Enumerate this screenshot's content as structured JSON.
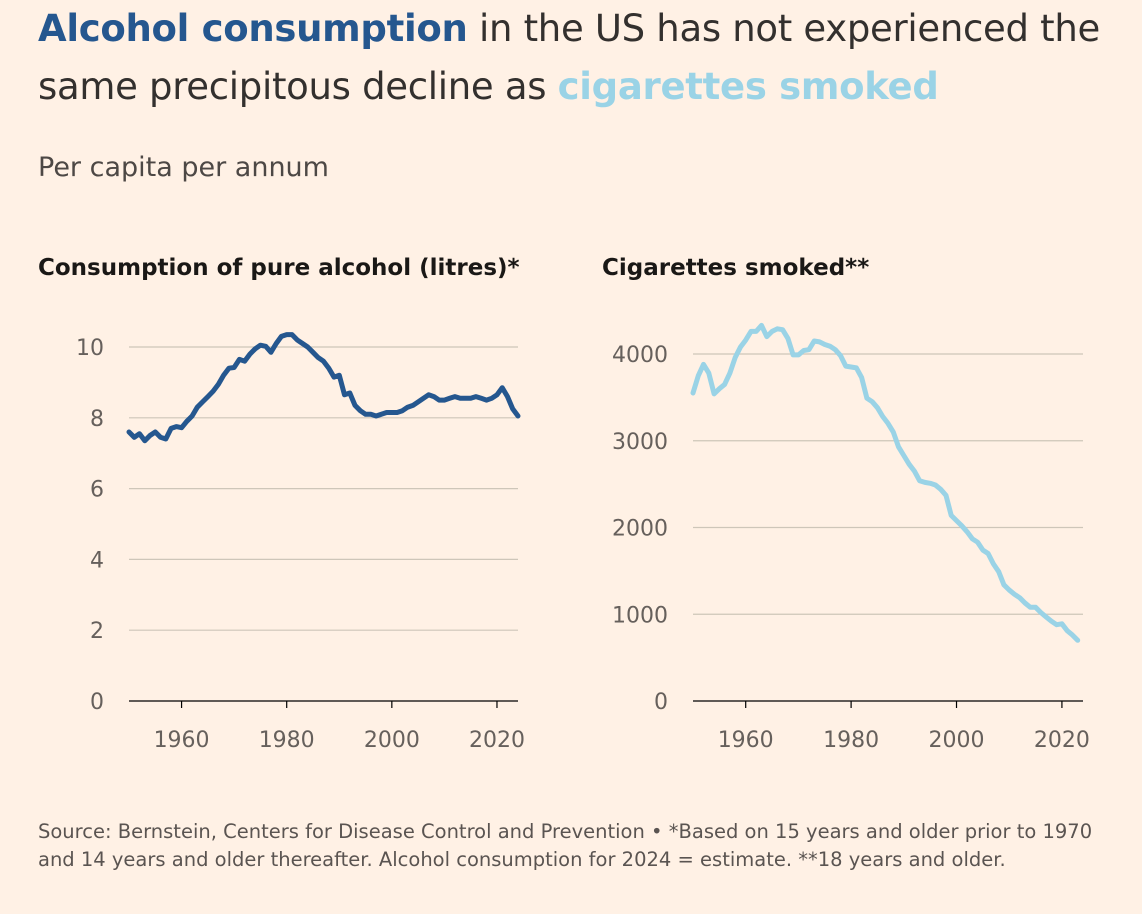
{
  "headline": {
    "alcohol_phrase": "Alcohol consumption",
    "middle": " in the US has not experienced the same precipitous decline as ",
    "cig_phrase": "cigarettes smoked"
  },
  "subtitle": "Per capita per annum",
  "colors": {
    "background": "#fff1e5",
    "alcohol_line": "#25578f",
    "cigarette_line": "#9ad3e6",
    "gridline": "#cec6b9",
    "text": "#33302e"
  },
  "footnote": "Source: Bernstein, Centers for Disease Control and Prevention • *Based on 15 years and older prior to 1970 and 14 years and older thereafter. Alcohol consumption for 2024 = estimate. **18 years and older.",
  "chart_data": [
    {
      "type": "line",
      "title": "Consumption of pure alcohol (litres)*",
      "xlabel": "",
      "ylabel": "",
      "xlim": [
        1950,
        2024
      ],
      "ylim": [
        0,
        10
      ],
      "yticks": [
        0,
        2,
        4,
        6,
        8,
        10
      ],
      "xticks": [
        1960,
        1980,
        2000,
        2020
      ],
      "series": [
        {
          "name": "Alcohol consumption",
          "color": "#25578f",
          "x": [
            1950,
            1951,
            1952,
            1953,
            1954,
            1955,
            1956,
            1957,
            1958,
            1959,
            1960,
            1961,
            1962,
            1963,
            1964,
            1965,
            1966,
            1967,
            1968,
            1969,
            1970,
            1971,
            1972,
            1973,
            1974,
            1975,
            1976,
            1977,
            1978,
            1979,
            1980,
            1981,
            1982,
            1983,
            1984,
            1985,
            1986,
            1987,
            1988,
            1989,
            1990,
            1991,
            1992,
            1993,
            1994,
            1995,
            1996,
            1997,
            1998,
            1999,
            2000,
            2001,
            2002,
            2003,
            2004,
            2005,
            2006,
            2007,
            2008,
            2009,
            2010,
            2011,
            2012,
            2013,
            2014,
            2015,
            2016,
            2017,
            2018,
            2019,
            2020,
            2021,
            2022,
            2023,
            2024
          ],
          "y": [
            7.6,
            7.45,
            7.55,
            7.35,
            7.5,
            7.6,
            7.45,
            7.4,
            7.7,
            7.75,
            7.72,
            7.9,
            8.05,
            8.3,
            8.45,
            8.6,
            8.75,
            8.95,
            9.2,
            9.4,
            9.42,
            9.65,
            9.6,
            9.8,
            9.95,
            10.05,
            10.02,
            9.85,
            10.1,
            10.3,
            10.35,
            10.35,
            10.2,
            10.1,
            10.0,
            9.85,
            9.7,
            9.6,
            9.4,
            9.15,
            9.2,
            8.65,
            8.7,
            8.35,
            8.2,
            8.1,
            8.1,
            8.05,
            8.1,
            8.15,
            8.15,
            8.15,
            8.2,
            8.3,
            8.35,
            8.45,
            8.55,
            8.65,
            8.6,
            8.5,
            8.5,
            8.55,
            8.6,
            8.55,
            8.55,
            8.55,
            8.6,
            8.55,
            8.5,
            8.55,
            8.65,
            8.85,
            8.6,
            8.25,
            8.05
          ]
        }
      ]
    },
    {
      "type": "line",
      "title": "Cigarettes smoked**",
      "xlabel": "",
      "ylabel": "",
      "xlim": [
        1950,
        2024
      ],
      "ylim": [
        0,
        4000
      ],
      "yticks": [
        0,
        1000,
        2000,
        3000,
        4000
      ],
      "xticks": [
        1960,
        1980,
        2000,
        2020
      ],
      "series": [
        {
          "name": "Cigarettes smoked",
          "color": "#9ad3e6",
          "x": [
            1950,
            1951,
            1952,
            1953,
            1954,
            1955,
            1956,
            1957,
            1958,
            1959,
            1960,
            1961,
            1962,
            1963,
            1964,
            1965,
            1966,
            1967,
            1968,
            1969,
            1970,
            1971,
            1972,
            1973,
            1974,
            1975,
            1976,
            1977,
            1978,
            1979,
            1980,
            1981,
            1982,
            1983,
            1984,
            1985,
            1986,
            1987,
            1988,
            1989,
            1990,
            1991,
            1992,
            1993,
            1994,
            1995,
            1996,
            1997,
            1998,
            1999,
            2000,
            2001,
            2002,
            2003,
            2004,
            2005,
            2006,
            2007,
            2008,
            2009,
            2010,
            2011,
            2012,
            2013,
            2014,
            2015,
            2016,
            2017,
            2018,
            2019,
            2020,
            2021,
            2022,
            2023
          ],
          "y": [
            3550,
            3750,
            3880,
            3780,
            3540,
            3600,
            3650,
            3780,
            3960,
            4080,
            4160,
            4260,
            4260,
            4330,
            4200,
            4260,
            4290,
            4280,
            4180,
            3990,
            3990,
            4040,
            4050,
            4150,
            4140,
            4110,
            4090,
            4050,
            3980,
            3860,
            3850,
            3840,
            3730,
            3490,
            3450,
            3380,
            3280,
            3200,
            3100,
            2930,
            2830,
            2730,
            2650,
            2540,
            2520,
            2510,
            2490,
            2440,
            2370,
            2140,
            2080,
            2020,
            1950,
            1870,
            1830,
            1740,
            1700,
            1580,
            1490,
            1340,
            1280,
            1230,
            1190,
            1130,
            1080,
            1080,
            1020,
            970,
            920,
            880,
            890,
            810,
            760,
            700
          ]
        }
      ]
    }
  ]
}
